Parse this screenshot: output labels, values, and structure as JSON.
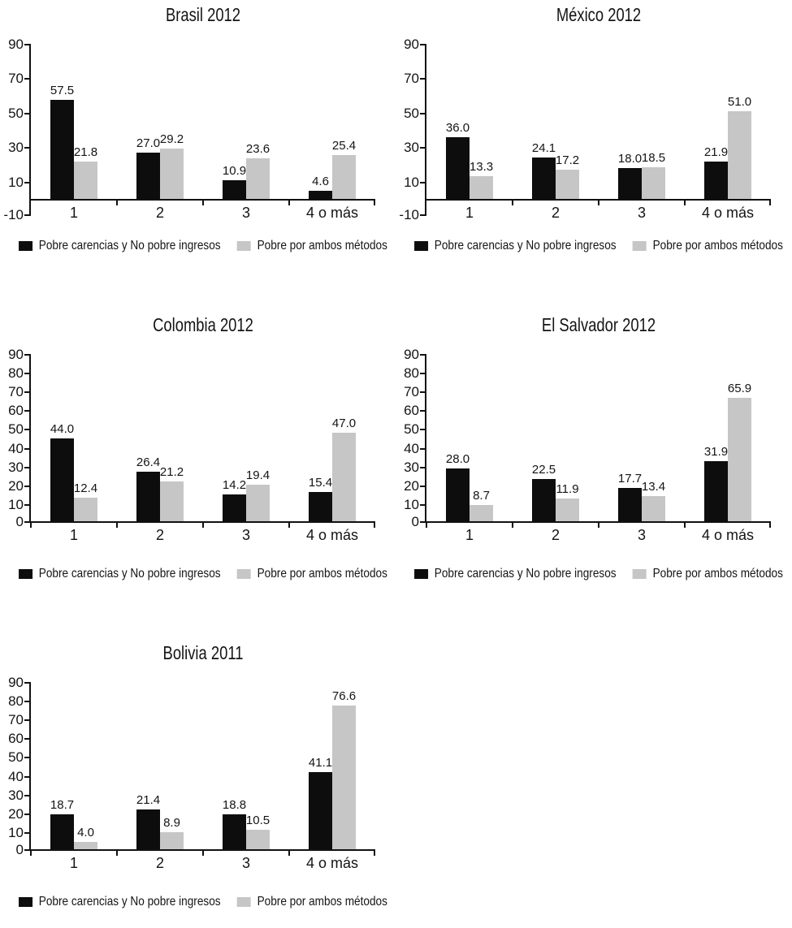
{
  "page": {
    "background": "#ffffff"
  },
  "colors": {
    "series1": "#0d0d0d",
    "series2": "#c6c6c6",
    "axis": "#111111",
    "text": "#141414"
  },
  "legend": {
    "series1_label": "Pobre carencias y No pobre ingresos",
    "series2_label": "Pobre por ambos métodos"
  },
  "chart_data": [
    {
      "type": "bar",
      "title": "Brasil 2012",
      "categories": [
        "1",
        "2",
        "3",
        "4 o más"
      ],
      "series": [
        {
          "name": "Pobre carencias y No pobre ingresos",
          "values": [
            57.5,
            27.0,
            10.9,
            4.6
          ]
        },
        {
          "name": "Pobre por ambos métodos",
          "values": [
            21.8,
            29.2,
            23.6,
            25.4
          ]
        }
      ],
      "ylim": [
        -10,
        90
      ],
      "yticks": [
        90,
        70,
        50,
        30,
        10,
        -10
      ],
      "grid": false,
      "legend_position": "bottom"
    },
    {
      "type": "bar",
      "title": "México 2012",
      "categories": [
        "1",
        "2",
        "3",
        "4 o más"
      ],
      "series": [
        {
          "name": "Pobre carencias y No pobre ingresos",
          "values": [
            36.0,
            24.1,
            18.0,
            21.9
          ]
        },
        {
          "name": "Pobre por ambos métodos",
          "values": [
            13.3,
            17.2,
            18.5,
            51.0
          ]
        }
      ],
      "ylim": [
        -10,
        90
      ],
      "yticks": [
        90,
        70,
        50,
        30,
        10,
        -10
      ],
      "grid": false,
      "legend_position": "bottom"
    },
    {
      "type": "bar",
      "title": "Colombia 2012",
      "categories": [
        "1",
        "2",
        "3",
        "4 o más"
      ],
      "series": [
        {
          "name": "Pobre carencias y No pobre ingresos",
          "values": [
            44.0,
            26.4,
            14.2,
            15.4
          ]
        },
        {
          "name": "Pobre por ambos métodos",
          "values": [
            12.4,
            21.2,
            19.4,
            47.0
          ]
        }
      ],
      "ylim": [
        0,
        90
      ],
      "yticks": [
        90,
        80,
        70,
        60,
        50,
        40,
        30,
        20,
        10,
        0
      ],
      "grid": false,
      "legend_position": "bottom"
    },
    {
      "type": "bar",
      "title": "El Salvador 2012",
      "categories": [
        "1",
        "2",
        "3",
        "4 o más"
      ],
      "series": [
        {
          "name": "Pobre carencias y No pobre ingresos",
          "values": [
            28.0,
            22.5,
            17.7,
            31.9
          ]
        },
        {
          "name": "Pobre por ambos métodos",
          "values": [
            8.7,
            11.9,
            13.4,
            65.9
          ]
        }
      ],
      "ylim": [
        0,
        90
      ],
      "yticks": [
        90,
        80,
        70,
        60,
        50,
        40,
        30,
        20,
        10,
        0
      ],
      "grid": false,
      "legend_position": "bottom"
    },
    {
      "type": "bar",
      "title": "Bolivia 2011",
      "categories": [
        "1",
        "2",
        "3",
        "4 o más"
      ],
      "series": [
        {
          "name": "Pobre carencias y No pobre ingresos",
          "values": [
            18.7,
            21.4,
            18.8,
            41.1
          ]
        },
        {
          "name": "Pobre por ambos métodos",
          "values": [
            4.0,
            8.9,
            10.5,
            76.6
          ]
        }
      ],
      "ylim": [
        0,
        90
      ],
      "yticks": [
        90,
        80,
        70,
        60,
        50,
        40,
        30,
        20,
        10,
        0
      ],
      "grid": false,
      "legend_position": "bottom"
    }
  ]
}
